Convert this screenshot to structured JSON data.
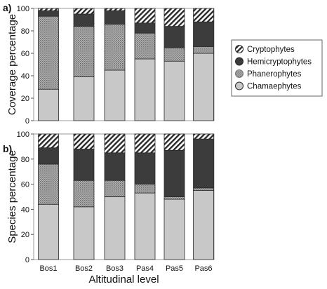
{
  "chart_data": [
    {
      "type": "bar",
      "stacked": true,
      "panel_label": "a)",
      "ylabel": "Coverage percentage",
      "ylim": [
        0,
        100
      ],
      "yticks": [
        0,
        20,
        40,
        60,
        80,
        100
      ],
      "categories": [
        "Bos1",
        "Bos2",
        "Bos3",
        "Pas4",
        "Pas5",
        "Pas6"
      ],
      "series": [
        {
          "name": "Chamaephytes",
          "values": [
            28,
            39,
            45,
            55,
            53,
            60
          ]
        },
        {
          "name": "Phanerophytes",
          "values": [
            65,
            45,
            41,
            23,
            12,
            6
          ]
        },
        {
          "name": "Hemicryptophytes",
          "values": [
            5,
            11,
            12,
            9,
            19,
            22
          ]
        },
        {
          "name": "Cryptophytes",
          "values": [
            2,
            5,
            2,
            13,
            16,
            12
          ]
        }
      ]
    },
    {
      "type": "bar",
      "stacked": true,
      "panel_label": "b)",
      "ylabel": "Species percentage",
      "xlabel": "Altitudinal level",
      "ylim": [
        0,
        100
      ],
      "yticks": [
        0,
        20,
        40,
        60,
        80,
        100
      ],
      "categories": [
        "Bos1",
        "Bos2",
        "Bos3",
        "Pas4",
        "Pas5",
        "Pas6"
      ],
      "series": [
        {
          "name": "Chamaephytes",
          "values": [
            44,
            42,
            50,
            53,
            48,
            55
          ]
        },
        {
          "name": "Phanerophytes",
          "values": [
            32,
            21,
            13,
            7,
            2,
            2
          ]
        },
        {
          "name": "Hemicryptophytes",
          "values": [
            13,
            25,
            22,
            25,
            37,
            39
          ]
        },
        {
          "name": "Cryptophytes",
          "values": [
            11,
            12,
            15,
            15,
            13,
            4
          ]
        }
      ]
    }
  ],
  "legend": {
    "placement": "right",
    "order": [
      "Cryptophytes",
      "Hemicryptophytes",
      "Phanerophytes",
      "Chamaephytes"
    ],
    "entries": [
      {
        "name": "Cryptophytes",
        "icon": "hatched-circle"
      },
      {
        "name": "Hemicryptophytes",
        "icon": "dark-circle"
      },
      {
        "name": "Phanerophytes",
        "icon": "dotted-circle"
      },
      {
        "name": "Chamaephytes",
        "icon": "light-circle"
      }
    ]
  },
  "colors": {
    "Chamaephytes": "#c8c8c8",
    "Phanerophytes": "#9a9a9a",
    "Hemicryptophytes": "#3c3c3c",
    "Cryptophytes": "#8c8c8c"
  }
}
